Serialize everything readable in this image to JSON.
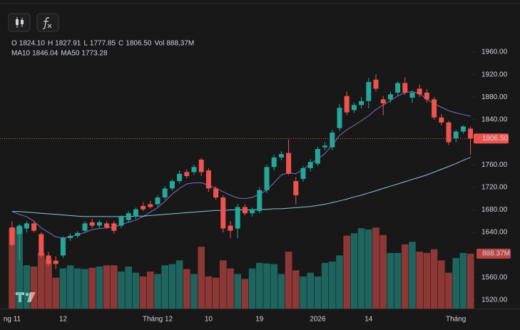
{
  "chart_data": {
    "type": "candlestick",
    "legend": {
      "items": [
        {
          "key": "O",
          "value": "1824.10"
        },
        {
          "key": "H",
          "value": "1827.91"
        },
        {
          "key": "L",
          "value": "1777.85"
        },
        {
          "key": "C",
          "value": "1806.50"
        },
        {
          "key": "Vol",
          "value": "888,37M"
        }
      ],
      "ma_values": [
        "1846.04",
        "1773.28"
      ]
    },
    "up_color": "#26a69a",
    "down_color": "#ef5350",
    "categories": [
      "ng 11",
      null,
      null,
      null,
      null,
      null,
      null,
      "12",
      null,
      null,
      null,
      null,
      null,
      null,
      null,
      null,
      null,
      null,
      null,
      null,
      "Tháng 12",
      null,
      null,
      null,
      null,
      null,
      null,
      "10",
      null,
      null,
      null,
      null,
      null,
      null,
      "19",
      null,
      null,
      null,
      null,
      null,
      null,
      null,
      "2026",
      null,
      null,
      null,
      null,
      null,
      null,
      "14",
      null,
      null,
      null,
      null,
      null,
      null,
      null,
      null,
      null,
      null,
      null,
      "Tháng",
      null,
      null
    ],
    "open": [
      1649,
      1637,
      1647,
      1656,
      1637,
      1599,
      1590,
      1599,
      1630,
      1634,
      1643,
      1658,
      1652,
      1656,
      1656,
      1652,
      1662,
      1668,
      1687,
      1690,
      1690,
      1702,
      1718,
      1731,
      1747,
      1747,
      1769,
      1750,
      1718,
      1702,
      1652,
      1647,
      1685,
      1674,
      1678,
      1715,
      1756,
      1773,
      1781,
      1731,
      1735,
      1754,
      1762,
      1791,
      1791,
      1825,
      1882,
      1857,
      1866,
      1873,
      1911,
      1876,
      1876,
      1888,
      1905,
      1879,
      1895,
      1888,
      1876,
      1844,
      1835,
      1807,
      1819,
      1824.1
    ],
    "high": [
      1660,
      1655,
      1660,
      1660,
      1640,
      1605,
      1598,
      1633,
      1638,
      1642,
      1660,
      1664,
      1662,
      1660,
      1660,
      1670,
      1678,
      1684,
      1694,
      1696,
      1706,
      1722,
      1734,
      1750,
      1752,
      1760,
      1772,
      1754,
      1722,
      1706,
      1660,
      1690,
      1690,
      1684,
      1720,
      1760,
      1778,
      1784,
      1805,
      1738,
      1758,
      1770,
      1792,
      1800,
      1822,
      1868,
      1890,
      1870,
      1880,
      1914,
      1920,
      1882,
      1890,
      1908,
      1915,
      1892,
      1902,
      1894,
      1880,
      1850,
      1838,
      1822,
      1830,
      1827.91
    ],
    "low": [
      1615,
      1590,
      1640,
      1640,
      1595,
      1580,
      1575,
      1595,
      1625,
      1630,
      1640,
      1648,
      1648,
      1646,
      1638,
      1648,
      1658,
      1664,
      1678,
      1682,
      1686,
      1698,
      1714,
      1727,
      1736,
      1742,
      1740,
      1712,
      1698,
      1640,
      1630,
      1630,
      1670,
      1668,
      1674,
      1710,
      1750,
      1768,
      1742,
      1690,
      1730,
      1748,
      1758,
      1786,
      1786,
      1820,
      1848,
      1852,
      1860,
      1860,
      1890,
      1848,
      1870,
      1882,
      1884,
      1870,
      1880,
      1870,
      1840,
      1830,
      1795,
      1800,
      1815,
      1777.85
    ],
    "close": [
      1618,
      1652,
      1656,
      1643,
      1599,
      1584,
      1584,
      1630,
      1634,
      1639,
      1656,
      1652,
      1658,
      1649,
      1643,
      1668,
      1674,
      1681,
      1681,
      1685,
      1702,
      1718,
      1731,
      1744,
      1740,
      1756,
      1747,
      1718,
      1702,
      1647,
      1643,
      1685,
      1674,
      1681,
      1715,
      1756,
      1773,
      1779,
      1744,
      1706,
      1754,
      1765,
      1788,
      1794,
      1817,
      1861,
      1853,
      1866,
      1873,
      1907,
      1895,
      1869,
      1885,
      1905,
      1888,
      1888,
      1885,
      1876,
      1844,
      1835,
      1800,
      1819,
      1828,
      1806.5
    ],
    "volume": {
      "values": [
        1300,
        1320,
        700,
        680,
        900,
        800,
        500,
        650,
        700,
        650,
        640,
        660,
        680,
        700,
        700,
        600,
        680,
        580,
        520,
        600,
        560,
        700,
        720,
        780,
        640,
        560,
        1000,
        520,
        500,
        780,
        650,
        560,
        480,
        650,
        740,
        730,
        720,
        560,
        920,
        620,
        520,
        580,
        520,
        740,
        760,
        860,
        1180,
        1220,
        1300,
        1280,
        1310,
        1190,
        900,
        900,
        1040,
        1080,
        920,
        900,
        960,
        780,
        580,
        820,
        900,
        888.37
      ],
      "last_label": "888.37M",
      "ylim": [
        0,
        1360
      ]
    },
    "last_price_label": "1806.50",
    "series": [
      {
        "name": "MA10",
        "color": "#7e6fc4",
        "values": [
          1677,
          1672,
          1668,
          1660,
          1648,
          1640,
          1632,
          1630,
          1632,
          1636,
          1640,
          1645,
          1647,
          1648,
          1650,
          1654,
          1658,
          1662,
          1668,
          1676,
          1684,
          1695,
          1708,
          1718,
          1726,
          1728,
          1728,
          1724,
          1718,
          1712,
          1706,
          1701,
          1700,
          1702,
          1708,
          1715,
          1728,
          1742,
          1746,
          1744,
          1752,
          1762,
          1770,
          1780,
          1795,
          1812,
          1822,
          1830,
          1838,
          1847,
          1858,
          1866,
          1874,
          1882,
          1888,
          1890,
          1886,
          1876,
          1868,
          1862,
          1856,
          1852,
          1849,
          1846.04
        ]
      },
      {
        "name": "MA50",
        "color": "#8ec5dc",
        "values": [
          1677,
          1677,
          1676,
          1675,
          1674,
          1673,
          1672,
          1671,
          1670,
          1669,
          1668,
          1668,
          1668,
          1668,
          1668,
          1668,
          1668,
          1669,
          1669,
          1670,
          1671,
          1672,
          1673,
          1674,
          1675,
          1676,
          1677,
          1678,
          1679,
          1679,
          1680,
          1680,
          1680,
          1680,
          1681,
          1681,
          1682,
          1682,
          1683,
          1684,
          1685,
          1686,
          1688,
          1690,
          1693,
          1696,
          1699,
          1703,
          1706,
          1710,
          1714,
          1718,
          1722,
          1726,
          1730,
          1734,
          1738,
          1742,
          1747,
          1752,
          1757,
          1762,
          1768,
          1773.28
        ]
      }
    ],
    "ylim": [
      1520,
      1960
    ],
    "yticks": [
      {
        "value": 1960,
        "label": "1960.00"
      },
      {
        "value": 1920,
        "label": "1920.00"
      },
      {
        "value": 1880,
        "label": "1880.00"
      },
      {
        "value": 1840,
        "label": "1840.00"
      },
      {
        "value": 1760,
        "label": "1760.00"
      },
      {
        "value": 1720,
        "label": "1720.00"
      },
      {
        "value": 1680,
        "label": "1680.00"
      },
      {
        "value": 1640,
        "label": "1640.00"
      },
      {
        "value": 1560,
        "label": "1560.00"
      },
      {
        "value": 1520,
        "label": "1520.00"
      }
    ],
    "grid": false
  }
}
